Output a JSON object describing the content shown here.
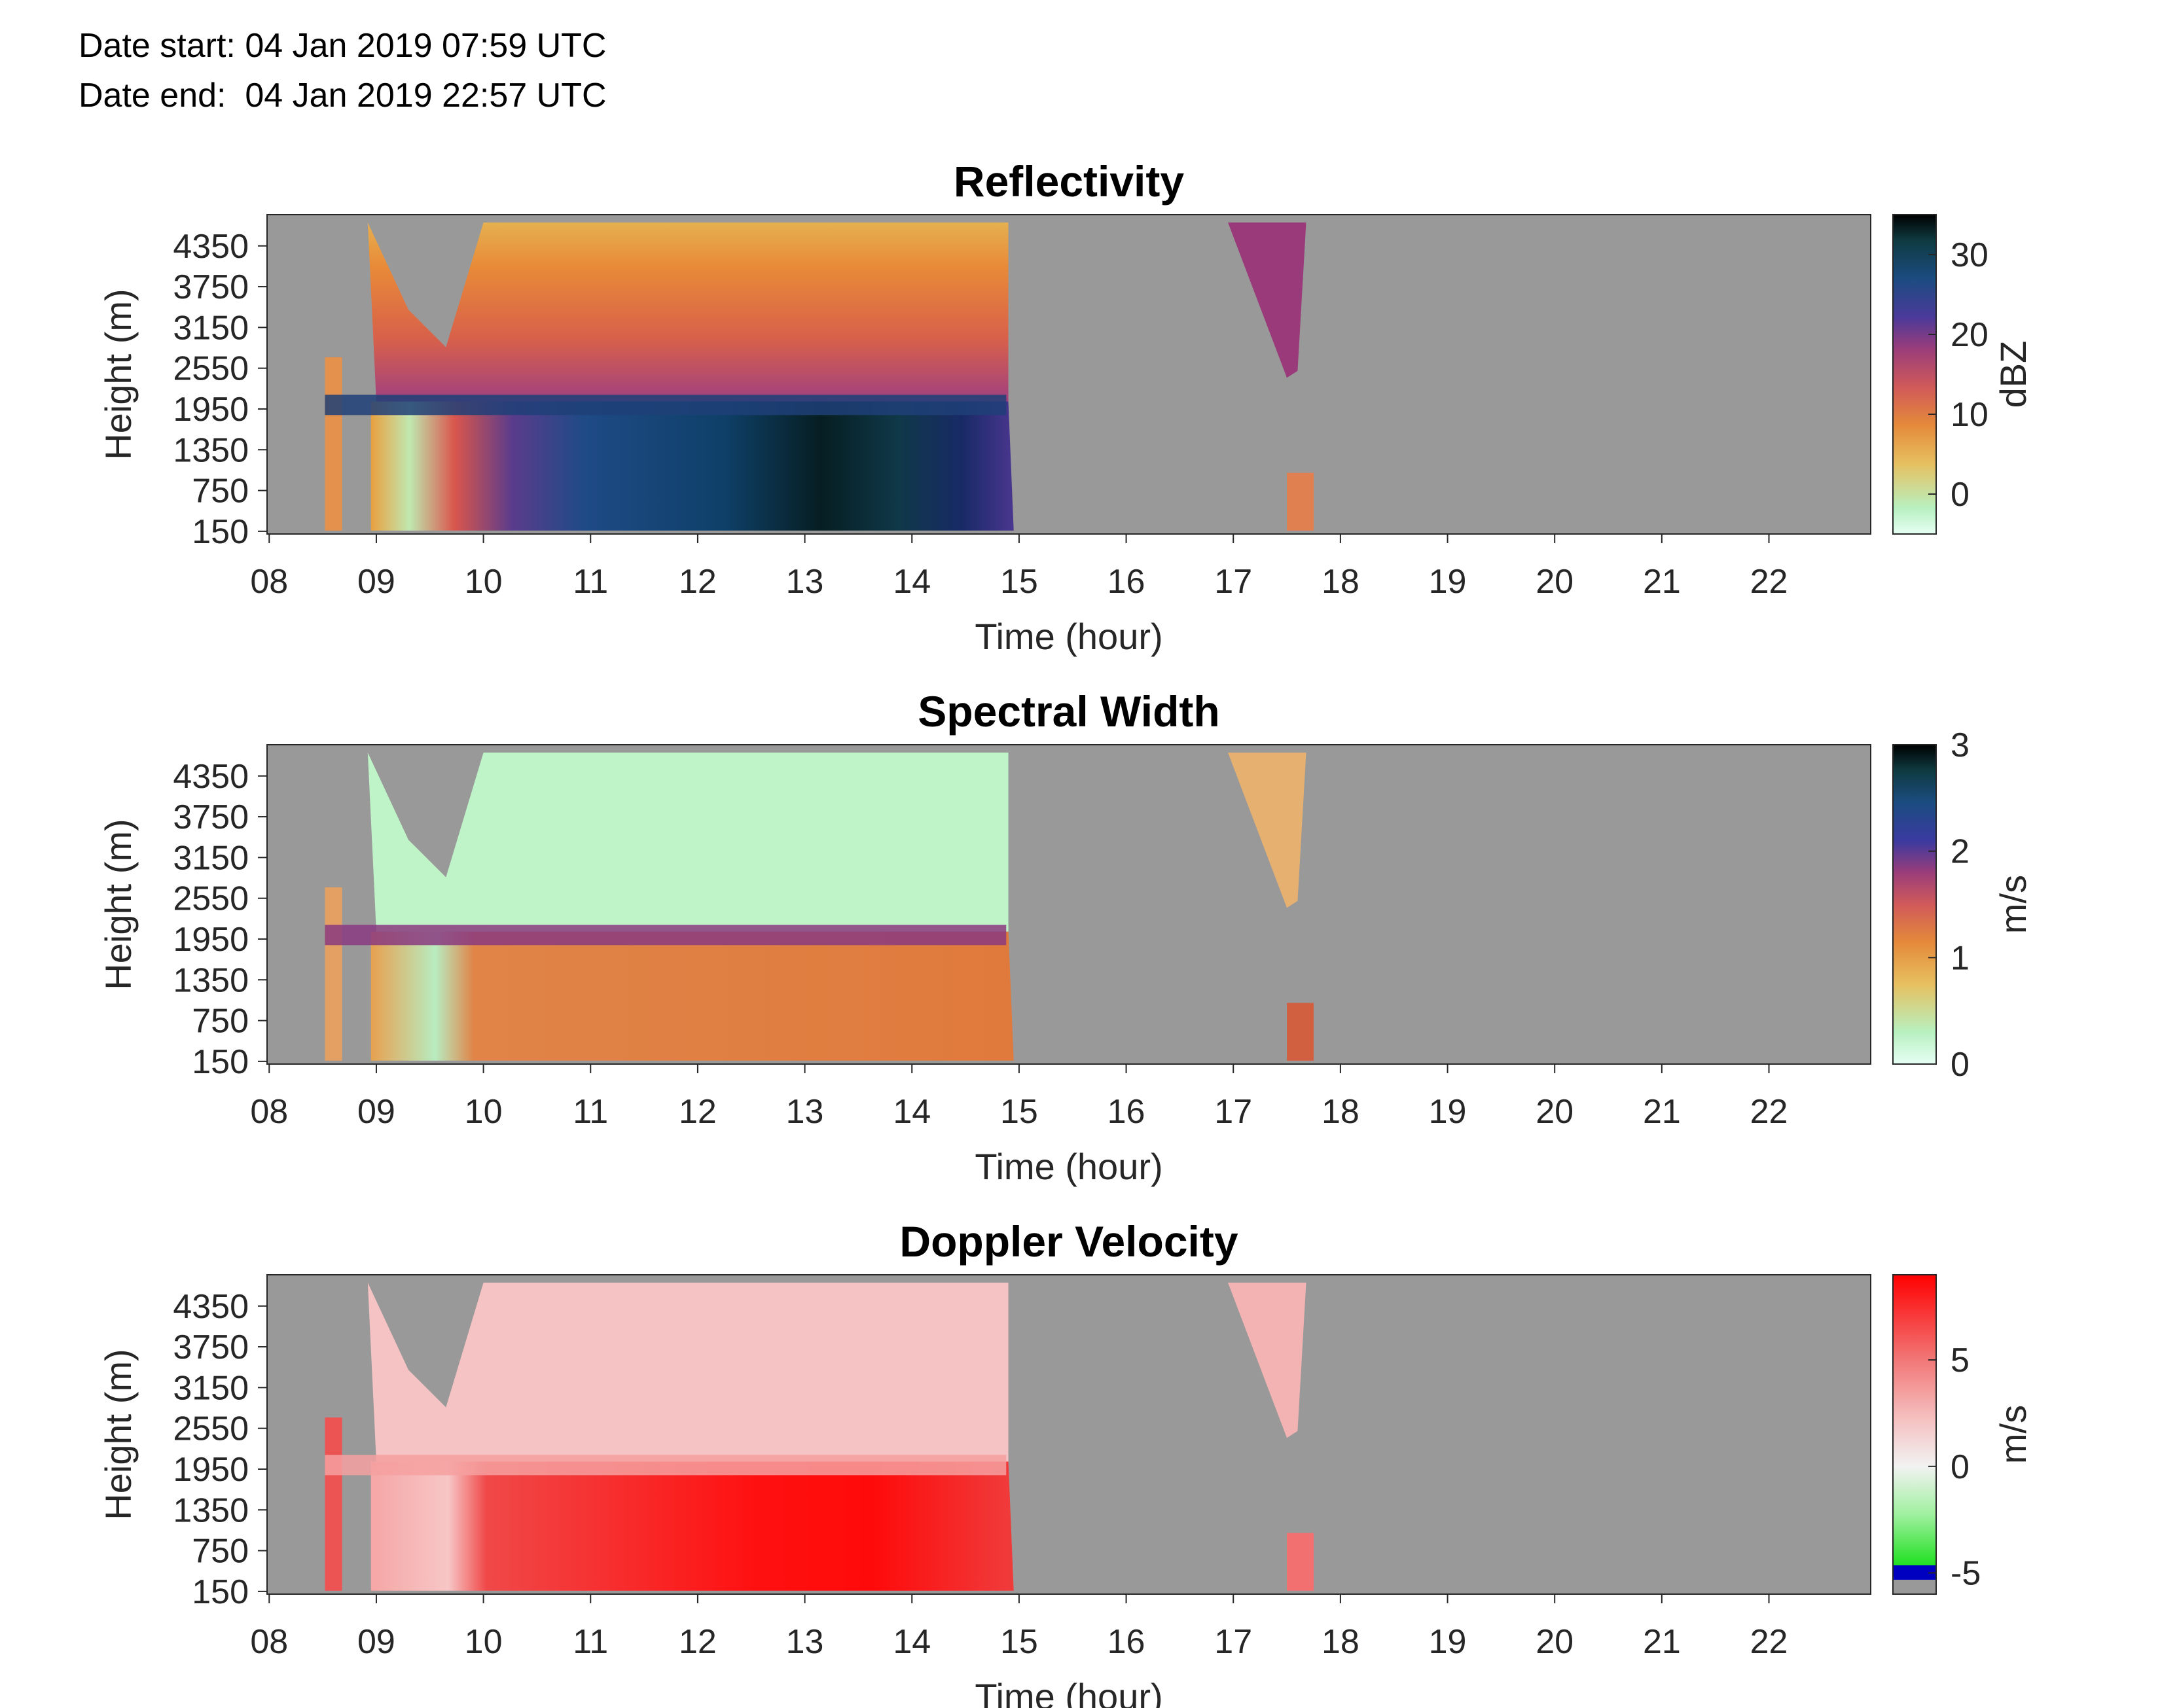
{
  "header": {
    "date_start": "Date start: 04 Jan 2019 07:59 UTC",
    "date_end": "Date end:  04 Jan 2019 22:57 UTC"
  },
  "chart_data": [
    {
      "type": "heatmap",
      "title": "Reflectivity",
      "xlabel": "Time (hour)",
      "ylabel": "Height (m)",
      "x_ticks": [
        "08",
        "09",
        "10",
        "11",
        "12",
        "13",
        "14",
        "15",
        "16",
        "17",
        "18",
        "19",
        "20",
        "21",
        "22"
      ],
      "y_ticks": [
        "150",
        "750",
        "1350",
        "1950",
        "2550",
        "3150",
        "3750",
        "4350"
      ],
      "xlim": [
        7.98,
        22.95
      ],
      "ylim": [
        0,
        4700
      ],
      "colorbar": {
        "label": "dBZ",
        "ticks": [
          "0",
          "10",
          "20",
          "30"
        ],
        "range": [
          -5,
          35
        ]
      },
      "no_data_color": "#999999"
    },
    {
      "type": "heatmap",
      "title": "Spectral Width",
      "xlabel": "Time (hour)",
      "ylabel": "Height (m)",
      "x_ticks": [
        "08",
        "09",
        "10",
        "11",
        "12",
        "13",
        "14",
        "15",
        "16",
        "17",
        "18",
        "19",
        "20",
        "21",
        "22"
      ],
      "y_ticks": [
        "150",
        "750",
        "1350",
        "1950",
        "2550",
        "3150",
        "3750",
        "4350"
      ],
      "xlim": [
        7.98,
        22.95
      ],
      "ylim": [
        0,
        4700
      ],
      "colorbar": {
        "label": "m/s",
        "ticks": [
          "0",
          "1",
          "2",
          "3"
        ],
        "range": [
          0,
          3
        ]
      },
      "no_data_color": "#999999"
    },
    {
      "type": "heatmap",
      "title": "Doppler Velocity",
      "xlabel": "Time (hour)",
      "ylabel": "Height (m)",
      "x_ticks": [
        "08",
        "09",
        "10",
        "11",
        "12",
        "13",
        "14",
        "15",
        "16",
        "17",
        "18",
        "19",
        "20",
        "21",
        "22"
      ],
      "y_ticks": [
        "150",
        "750",
        "1350",
        "1950",
        "2550",
        "3150",
        "3750",
        "4350"
      ],
      "xlim": [
        7.98,
        22.95
      ],
      "ylim": [
        0,
        4700
      ],
      "colorbar": {
        "label": "m/s",
        "ticks": [
          "-5",
          "0",
          "5"
        ],
        "range": [
          -6,
          9
        ]
      },
      "no_data_color": "#999999"
    }
  ]
}
